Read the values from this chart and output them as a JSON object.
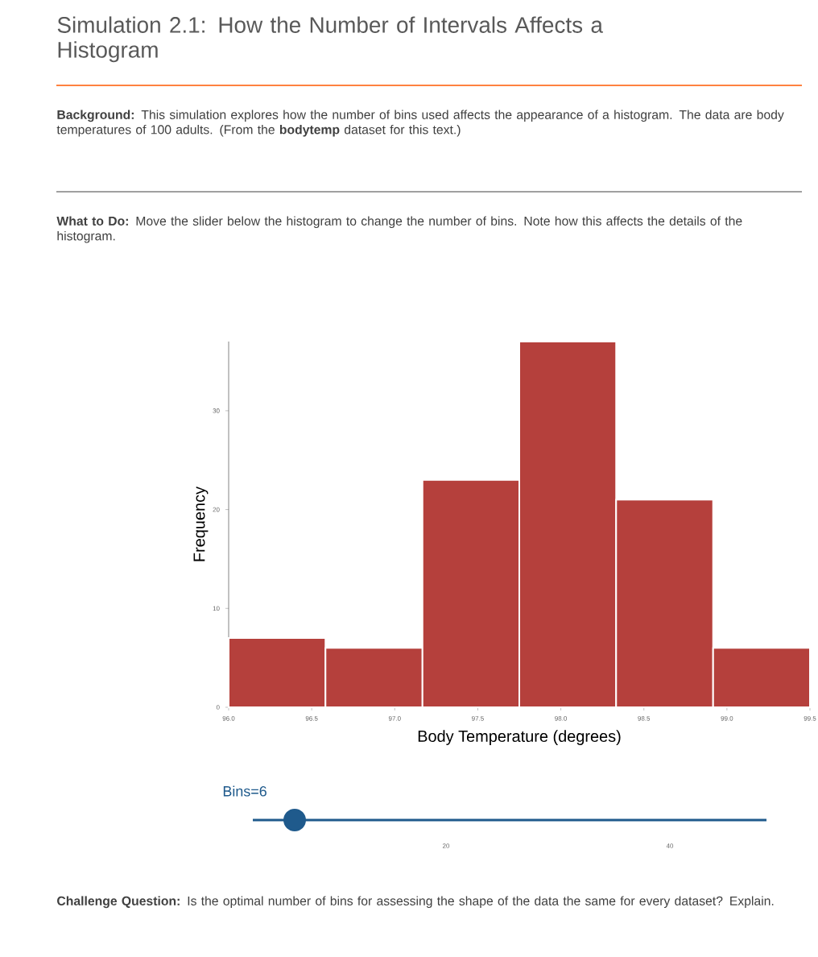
{
  "chart_data": {
    "type": "histogram",
    "title": "Simulation 2.1: How the Number of Intervals Affects a Histogram",
    "xlabel": "Body Temperature (degrees)",
    "ylabel": "Frequency",
    "bins": [
      96,
      96.583,
      97.167,
      97.75,
      98.333,
      98.917,
      99.5
    ],
    "values": [
      7,
      6,
      23,
      37,
      21,
      6
    ],
    "color": "#b5403c",
    "xlim": [
      96,
      99.5
    ],
    "xticks": [
      {
        "value": 96,
        "label": "96.0"
      },
      {
        "value": 96.5,
        "label": "96.5"
      },
      {
        "value": 97,
        "label": "97.0"
      },
      {
        "value": 97.5,
        "label": "97.5"
      },
      {
        "value": 98,
        "label": "98.0"
      },
      {
        "value": 98.5,
        "label": "98.5"
      },
      {
        "value": 99,
        "label": "99.0"
      },
      {
        "value": 99.5,
        "label": "99.5"
      }
    ],
    "ylim": [
      0,
      37
    ],
    "yticks": [
      0,
      10,
      20,
      30
    ],
    "grid": false,
    "annotations": [
      "**Background:** This simulation explores how the number of bins used affects the appearance of a histogram. The data are body temperatures of 100 adults. (From the **bodytemp** dataset for this text.)",
      "**What to Do:** Move the slider below the histogram to change the number of bins. Note how this affects the details of the histogram.",
      "Bins=6",
      "20",
      "40",
      "**Challenge Question:** Is the optimal number of bins for assessing the shape of the data the same for every dataset? Explain."
    ]
  }
}
